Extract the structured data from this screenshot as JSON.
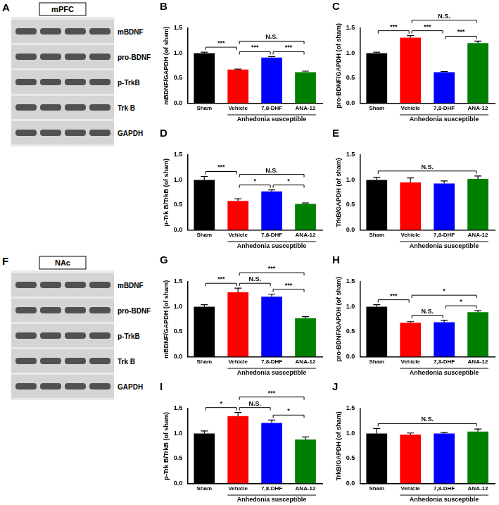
{
  "blots": [
    {
      "panel": "A",
      "title": "mPFC",
      "rows": [
        "mBDNF",
        "pro-BDNF",
        "p-TrkB",
        "Trk B",
        "GAPDH"
      ]
    },
    {
      "panel": "F",
      "title": "NAc",
      "rows": [
        "mBDNF",
        "pro-BDNF",
        "p-TrkB",
        "Trk B",
        "GAPDH"
      ]
    }
  ],
  "chart_data": [
    {
      "panel": "B",
      "type": "bar",
      "ylabel": "mBDNF/GAPDH (of sham)",
      "categories": [
        "Sham",
        "Vehicle",
        "7,8-DHF",
        "ANA-12"
      ],
      "values": [
        1.0,
        0.67,
        0.91,
        0.62
      ],
      "errors": [
        0.02,
        0.01,
        0.02,
        0.02
      ],
      "colors": [
        "#000000",
        "#ff0000",
        "#0000ff",
        "#008000"
      ],
      "ylim": [
        0,
        1.5
      ],
      "yticks": [
        {
          "value": 0,
          "label": "0.0"
        },
        {
          "value": 0.5,
          "label": "0.5"
        },
        {
          "value": 1,
          "label": "1.0"
        },
        {
          "value": 1.5,
          "label": "1.5"
        }
      ],
      "grid": false,
      "group": {
        "label": "Anhedonia susceptible",
        "categories": [
          "Vehicle",
          "7,8-DHF",
          "ANA-12"
        ]
      },
      "comparisons": [
        {
          "from": "Sham",
          "to": "Vehicle",
          "label": "***"
        },
        {
          "from": "Vehicle",
          "to": "7,8-DHF",
          "label": "***"
        },
        {
          "from": "7,8-DHF",
          "to": "ANA-12",
          "label": "***"
        },
        {
          "from": "Vehicle",
          "to": "ANA-12",
          "label": "N.S."
        }
      ]
    },
    {
      "panel": "C",
      "type": "bar",
      "ylabel": "pro-BDNF/GAPDH (of sham)",
      "categories": [
        "Sham",
        "Vehicle",
        "7,8-DHF",
        "ANA-12"
      ],
      "values": [
        1.0,
        1.31,
        0.62,
        1.2
      ],
      "errors": [
        0.02,
        0.04,
        0.01,
        0.04
      ],
      "colors": [
        "#000000",
        "#ff0000",
        "#0000ff",
        "#008000"
      ],
      "ylim": [
        0,
        1.5
      ],
      "yticks": [
        {
          "value": 0,
          "label": "0.0"
        },
        {
          "value": 0.5,
          "label": "0.5"
        },
        {
          "value": 1,
          "label": "1.0"
        },
        {
          "value": 1.5,
          "label": "1.5"
        }
      ],
      "grid": false,
      "group": {
        "label": "Anhedonia susceptible",
        "categories": [
          "Vehicle",
          "7,8-DHF",
          "ANA-12"
        ]
      },
      "comparisons": [
        {
          "from": "Sham",
          "to": "Vehicle",
          "label": "***"
        },
        {
          "from": "Vehicle",
          "to": "7,8-DHF",
          "label": "***"
        },
        {
          "from": "7,8-DHF",
          "to": "ANA-12",
          "label": "***"
        },
        {
          "from": "Vehicle",
          "to": "ANA-12",
          "label": "N.S."
        }
      ]
    },
    {
      "panel": "D",
      "type": "bar",
      "ylabel": "p-Trk B/TrkB (of sham)",
      "categories": [
        "Sham",
        "Vehicle",
        "7,8-DHF",
        "ANA-12"
      ],
      "values": [
        1.0,
        0.58,
        0.77,
        0.52
      ],
      "errors": [
        0.07,
        0.04,
        0.03,
        0.02
      ],
      "colors": [
        "#000000",
        "#ff0000",
        "#0000ff",
        "#008000"
      ],
      "ylim": [
        0,
        1.5
      ],
      "yticks": [
        {
          "value": 0,
          "label": "0.0"
        },
        {
          "value": 0.5,
          "label": "0.5"
        },
        {
          "value": 1,
          "label": "1.0"
        },
        {
          "value": 1.5,
          "label": "1.5"
        }
      ],
      "grid": false,
      "group": {
        "label": "Anhedonia susceptible",
        "categories": [
          "Vehicle",
          "7,8-DHF",
          "ANA-12"
        ]
      },
      "comparisons": [
        {
          "from": "Sham",
          "to": "Vehicle",
          "label": "***"
        },
        {
          "from": "Vehicle",
          "to": "7,8-DHF",
          "label": "*"
        },
        {
          "from": "7,8-DHF",
          "to": "ANA-12",
          "label": "*"
        },
        {
          "from": "Vehicle",
          "to": "ANA-12",
          "label": "N.S."
        }
      ]
    },
    {
      "panel": "E",
      "type": "bar",
      "ylabel": "TrkB/GAPDH (of sham)",
      "categories": [
        "Sham",
        "Vehicle",
        "7,8-DHF",
        "ANA-12"
      ],
      "values": [
        1.0,
        0.95,
        0.93,
        1.02
      ],
      "errors": [
        0.05,
        0.09,
        0.05,
        0.06
      ],
      "colors": [
        "#000000",
        "#ff0000",
        "#0000ff",
        "#008000"
      ],
      "ylim": [
        0,
        1.5
      ],
      "yticks": [
        {
          "value": 0,
          "label": "0.0"
        },
        {
          "value": 0.5,
          "label": "0.5"
        },
        {
          "value": 1,
          "label": "1.0"
        },
        {
          "value": 1.5,
          "label": "1.5"
        }
      ],
      "grid": false,
      "group": {
        "label": "Anhedonia susceptible",
        "categories": [
          "Vehicle",
          "7,8-DHF",
          "ANA-12"
        ]
      },
      "comparisons": [
        {
          "from": "Sham",
          "to": "ANA-12",
          "label": "N.S."
        }
      ]
    },
    {
      "panel": "G",
      "type": "bar",
      "ylabel": "mBDNF/GAPDH (of sham)",
      "categories": [
        "Sham",
        "Vehicle",
        "7,8-DHF",
        "ANA-12"
      ],
      "values": [
        1.0,
        1.29,
        1.2,
        0.77
      ],
      "errors": [
        0.04,
        0.08,
        0.05,
        0.03
      ],
      "colors": [
        "#000000",
        "#ff0000",
        "#0000ff",
        "#008000"
      ],
      "ylim": [
        0,
        1.5
      ],
      "yticks": [
        {
          "value": 0,
          "label": "0.0"
        },
        {
          "value": 0.5,
          "label": "0.5"
        },
        {
          "value": 1,
          "label": "1.0"
        },
        {
          "value": 1.5,
          "label": "1.5"
        }
      ],
      "grid": false,
      "group": {
        "label": "Anhedonia susceptible",
        "categories": [
          "Vehicle",
          "7,8-DHF",
          "ANA-12"
        ]
      },
      "comparisons": [
        {
          "from": "Sham",
          "to": "Vehicle",
          "label": "***"
        },
        {
          "from": "Vehicle",
          "to": "7,8-DHF",
          "label": "N.S."
        },
        {
          "from": "7,8-DHF",
          "to": "ANA-12",
          "label": "***"
        },
        {
          "from": "Vehicle",
          "to": "ANA-12",
          "label": "***"
        }
      ]
    },
    {
      "panel": "H",
      "type": "bar",
      "ylabel": "pro-BDNF/GAPDH (of sham)",
      "categories": [
        "Sham",
        "Vehicle",
        "7,8-DHF",
        "ANA-12"
      ],
      "values": [
        1.0,
        0.68,
        0.69,
        0.89
      ],
      "errors": [
        0.04,
        0.02,
        0.04,
        0.03
      ],
      "colors": [
        "#000000",
        "#ff0000",
        "#0000ff",
        "#008000"
      ],
      "ylim": [
        0,
        1.5
      ],
      "yticks": [
        {
          "value": 0,
          "label": "0.0"
        },
        {
          "value": 0.5,
          "label": "0.5"
        },
        {
          "value": 1,
          "label": "1.0"
        },
        {
          "value": 1.5,
          "label": "1.5"
        }
      ],
      "grid": false,
      "group": {
        "label": "Anhedonia susceptible",
        "categories": [
          "Vehicle",
          "7,8-DHF",
          "ANA-12"
        ]
      },
      "comparisons": [
        {
          "from": "Sham",
          "to": "Vehicle",
          "label": "***"
        },
        {
          "from": "Vehicle",
          "to": "7,8-DHF",
          "label": "N.S."
        },
        {
          "from": "7,8-DHF",
          "to": "ANA-12",
          "label": "*"
        },
        {
          "from": "Vehicle",
          "to": "ANA-12",
          "label": "*"
        }
      ]
    },
    {
      "panel": "I",
      "type": "bar",
      "ylabel": "p-Trk B/TrkB (of sham)",
      "categories": [
        "Sham",
        "Vehicle",
        "7,8-DHF",
        "ANA-12"
      ],
      "values": [
        1.0,
        1.35,
        1.21,
        0.88
      ],
      "errors": [
        0.05,
        0.07,
        0.06,
        0.05
      ],
      "colors": [
        "#000000",
        "#ff0000",
        "#0000ff",
        "#008000"
      ],
      "ylim": [
        0,
        1.5
      ],
      "yticks": [
        {
          "value": 0,
          "label": "0.0"
        },
        {
          "value": 0.5,
          "label": "0.5"
        },
        {
          "value": 1,
          "label": "1.0"
        },
        {
          "value": 1.5,
          "label": "1.5"
        }
      ],
      "grid": false,
      "group": {
        "label": "Anhedonia susceptible",
        "categories": [
          "Vehicle",
          "7,8-DHF",
          "ANA-12"
        ]
      },
      "comparisons": [
        {
          "from": "Sham",
          "to": "Vehicle",
          "label": "*"
        },
        {
          "from": "Vehicle",
          "to": "7,8-DHF",
          "label": "N.S."
        },
        {
          "from": "7,8-DHF",
          "to": "ANA-12",
          "label": "*"
        },
        {
          "from": "Vehicle",
          "to": "ANA-12",
          "label": "***"
        }
      ]
    },
    {
      "panel": "J",
      "type": "bar",
      "ylabel": "TrkB/GAPDH (of sham)",
      "categories": [
        "Sham",
        "Vehicle",
        "7,8-DHF",
        "ANA-12"
      ],
      "values": [
        1.0,
        0.98,
        1.0,
        1.04
      ],
      "errors": [
        0.1,
        0.03,
        0.02,
        0.05
      ],
      "colors": [
        "#000000",
        "#ff0000",
        "#0000ff",
        "#008000"
      ],
      "ylim": [
        0,
        1.5
      ],
      "yticks": [
        {
          "value": 0,
          "label": "0.0"
        },
        {
          "value": 0.5,
          "label": "0.5"
        },
        {
          "value": 1,
          "label": "1.0"
        },
        {
          "value": 1.5,
          "label": "1.5"
        }
      ],
      "grid": false,
      "group": {
        "label": "Anhedonia susceptible",
        "categories": [
          "Vehicle",
          "7,8-DHF",
          "ANA-12"
        ]
      },
      "comparisons": [
        {
          "from": "Sham",
          "to": "ANA-12",
          "label": "N.S."
        }
      ]
    }
  ]
}
